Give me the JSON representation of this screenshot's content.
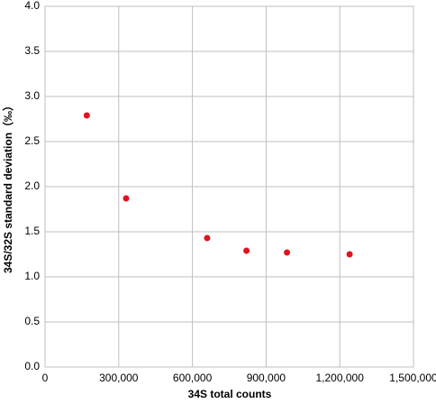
{
  "chart_data": {
    "type": "scatter",
    "x_label": "34S total counts",
    "y_label": "34S/32S standard deviation（‰）",
    "series": [
      {
        "name": "34S/32S standard deviation",
        "color": "#e0141e",
        "x": [
          170000,
          330000,
          660000,
          820000,
          985000,
          1240000
        ],
        "values": [
          2.79,
          1.87,
          1.43,
          1.29,
          1.27,
          1.25
        ]
      }
    ],
    "xlim": [
      0,
      1500000
    ],
    "xticks": [
      0,
      {
        "value": 300000,
        "label": "300,000"
      },
      {
        "value": 600000,
        "label": "600,000"
      },
      {
        "value": 900000,
        "label": "900,000"
      },
      {
        "value": 1200000,
        "label": "1,200,000"
      },
      {
        "value": 1500000,
        "label": "1,500,000"
      }
    ],
    "ylim": [
      0,
      4
    ],
    "yticks": [
      {
        "value": 0,
        "label": "0.0"
      },
      {
        "value": 0.5,
        "label": "0.5"
      },
      {
        "value": 1,
        "label": "1.0"
      },
      {
        "value": 1.5,
        "label": "1.5"
      },
      {
        "value": 2,
        "label": "2.0"
      },
      {
        "value": 2.5,
        "label": "2.5"
      },
      {
        "value": 3,
        "label": "3.0"
      },
      {
        "value": 3.5,
        "label": "3.5"
      },
      {
        "value": 4,
        "label": "4.0"
      }
    ],
    "grid": true
  }
}
